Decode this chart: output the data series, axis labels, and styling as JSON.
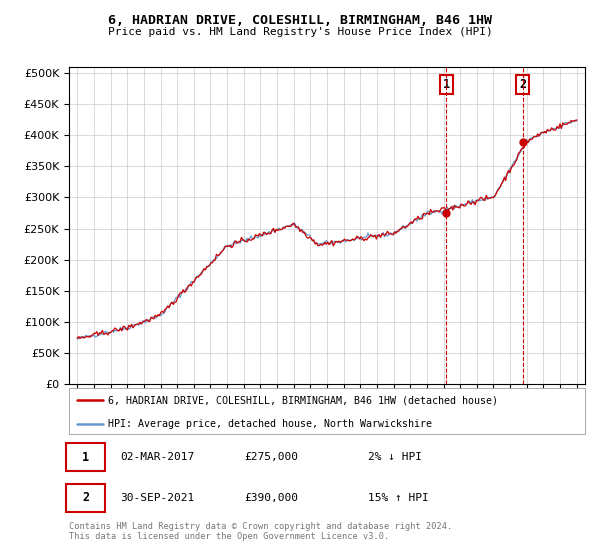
{
  "title": "6, HADRIAN DRIVE, COLESHILL, BIRMINGHAM, B46 1HW",
  "subtitle": "Price paid vs. HM Land Registry's House Price Index (HPI)",
  "legend_line1": "6, HADRIAN DRIVE, COLESHILL, BIRMINGHAM, B46 1HW (detached house)",
  "legend_line2": "HPI: Average price, detached house, North Warwickshire",
  "marker1_date": "02-MAR-2017",
  "marker1_price": 275000,
  "marker1_note": "2% ↓ HPI",
  "marker1_x": 2017.17,
  "marker2_date": "30-SEP-2021",
  "marker2_price": 390000,
  "marker2_note": "15% ↑ HPI",
  "marker2_x": 2021.75,
  "footer": "Contains HM Land Registry data © Crown copyright and database right 2024.\nThis data is licensed under the Open Government Licence v3.0.",
  "line_red": "#cc0000",
  "line_blue": "#6699cc",
  "marker_box_color": "#cc0000",
  "background_color": "#ffffff",
  "grid_color": "#cccccc",
  "ylim": [
    0,
    510000
  ],
  "xlim": [
    1994.5,
    2025.5
  ]
}
